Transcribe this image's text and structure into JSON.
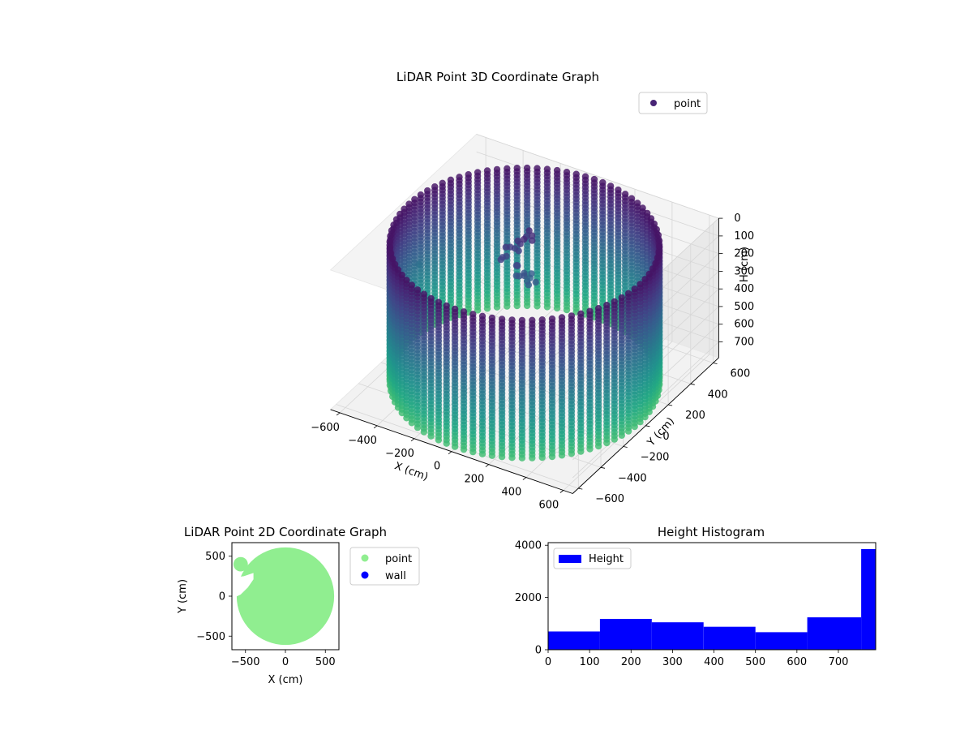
{
  "figure": {
    "panels": [
      {
        "id": "lidar-3d",
        "title": "LiDAR Point 3D Coordinate Graph"
      },
      {
        "id": "lidar-2d",
        "title": "LiDAR Point 2D Coordinate Graph"
      },
      {
        "id": "height-hist",
        "title": "Height Histogram"
      }
    ]
  },
  "chart_data": [
    {
      "type": "scatter",
      "projection": "3d",
      "title": "LiDAR Point 3D Coordinate Graph",
      "xlabel": "X (cm)",
      "ylabel": "Y (cm)",
      "zlabel": "H (cm)",
      "xlim": [
        -650,
        650
      ],
      "ylim": [
        -650,
        650
      ],
      "zlim": [
        0,
        790
      ],
      "z_inverted": true,
      "xticks": [
        -600,
        -400,
        -200,
        0,
        200,
        400,
        600
      ],
      "yticks": [
        -600,
        -400,
        -200,
        0,
        200,
        400,
        600
      ],
      "zticks": [
        0,
        100,
        200,
        300,
        400,
        500,
        600,
        700
      ],
      "colormap": "viridis",
      "legend": {
        "position": "upper-right",
        "entries": [
          {
            "label": "point",
            "color": "#482475"
          }
        ]
      },
      "shape": {
        "kind": "cylindrical-wall",
        "center": [
          0,
          0
        ],
        "radius": 620,
        "h_range": [
          0,
          780
        ]
      },
      "interior_cluster": {
        "center": [
          -100,
          130
        ],
        "h_range": [
          80,
          330
        ]
      },
      "outliers": [
        {
          "x": -640,
          "y": 120,
          "h": 420
        },
        {
          "x": -640,
          "y": 100,
          "h": 560
        }
      ],
      "grid": true
    },
    {
      "type": "scatter",
      "title": "LiDAR Point 2D Coordinate Graph",
      "xlabel": "X (cm)",
      "ylabel": "Y (cm)",
      "xlim": [
        -670,
        670
      ],
      "ylim": [
        -670,
        670
      ],
      "xticks": [
        -500,
        0,
        500
      ],
      "yticks": [
        -500,
        0,
        500
      ],
      "legend": {
        "position": "outside-right",
        "entries": [
          {
            "label": "point",
            "color": "#90ee90"
          },
          {
            "label": "wall",
            "color": "#0000ff"
          }
        ]
      },
      "filled_region": {
        "center": [
          0,
          0
        ],
        "radius": 610,
        "color": "#90ee90"
      },
      "grid": false
    },
    {
      "type": "bar",
      "subtype": "histogram",
      "title": "Height Histogram",
      "xlabel": "",
      "ylabel": "",
      "xlim": [
        0,
        790
      ],
      "ylim": [
        0,
        4100
      ],
      "xticks": [
        0,
        100,
        200,
        300,
        400,
        500,
        600,
        700
      ],
      "yticks": [
        0,
        2000,
        4000
      ],
      "bin_edges": [
        0,
        125,
        250,
        375,
        500,
        625,
        755,
        790
      ],
      "values": [
        700,
        1180,
        1050,
        880,
        670,
        1240,
        3850
      ],
      "color": "#0000ff",
      "legend": {
        "position": "upper-left",
        "entries": [
          {
            "label": "Height",
            "color": "#0000ff"
          }
        ]
      },
      "grid": false
    }
  ]
}
